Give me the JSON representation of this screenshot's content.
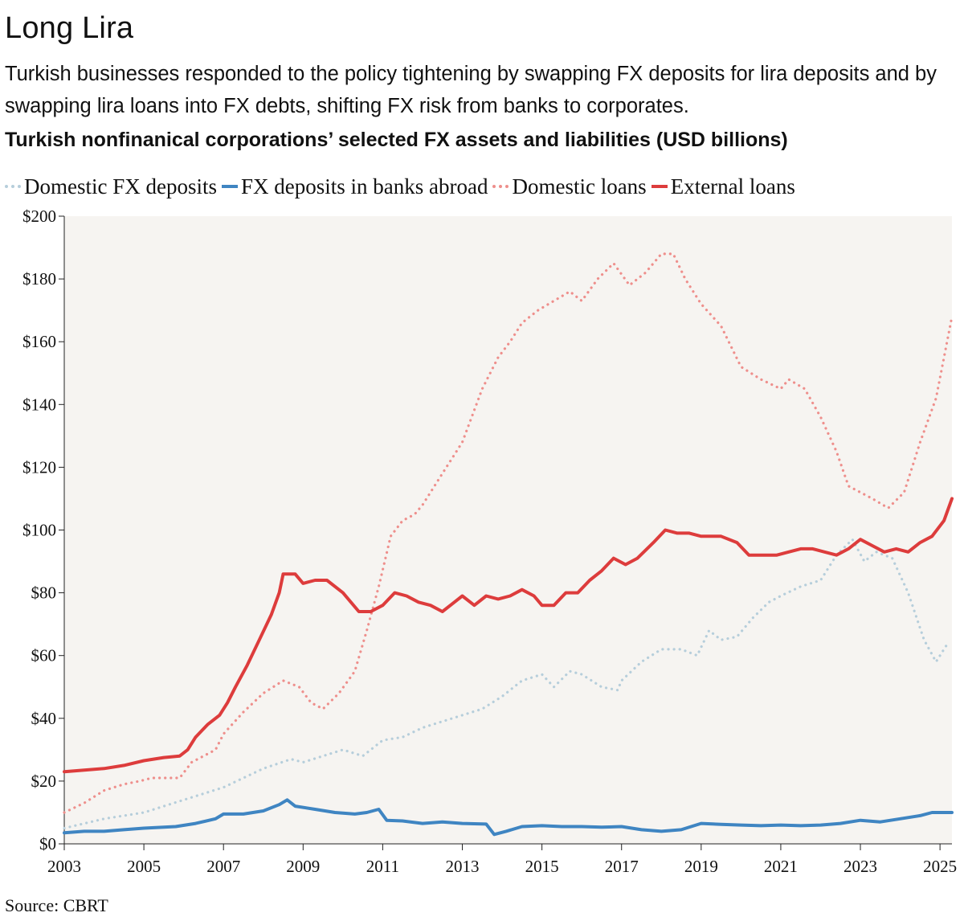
{
  "title": "Long Lira",
  "subtitle": "Turkish businesses responded to the policy tightening by swapping FX deposits for lira deposits and by swapping lira loans into FX debts, shifting FX risk from banks to corporates.",
  "source": "Source: CBRT",
  "colors": {
    "background": "#f6f4f1",
    "domestic_fx_deposits": "#b6cedb",
    "fx_deposits_abroad": "#3f85c2",
    "domestic_loans": "#ee8f8c",
    "external_loans": "#dd3c3c"
  },
  "chart_data": {
    "type": "line",
    "title": "Turkish nonfinanical corporations’ selected FX assets and liabilities (USD billions)",
    "xlabel": "",
    "ylabel": "",
    "xlim": [
      2003,
      2025.3
    ],
    "ylim": [
      0,
      200
    ],
    "x_ticks": [
      2003,
      2005,
      2007,
      2009,
      2011,
      2013,
      2015,
      2017,
      2019,
      2021,
      2023,
      2025
    ],
    "x_tick_labels": [
      "2003",
      "2005",
      "2007",
      "2009",
      "2011",
      "2013",
      "2015",
      "2017",
      "2019",
      "2021",
      "2023",
      "2025"
    ],
    "y_ticks": [
      0,
      20,
      40,
      60,
      80,
      100,
      120,
      140,
      160,
      180,
      200
    ],
    "y_tick_labels": [
      "$0",
      "$20",
      "$40",
      "$60",
      "$80",
      "$100",
      "$120",
      "$140",
      "$160",
      "$180",
      "$200"
    ],
    "grid": false,
    "legend_position": "top",
    "series": [
      {
        "name": "Domestic FX deposits",
        "style": "dotted",
        "points": [
          [
            2003,
            5
          ],
          [
            2004,
            8
          ],
          [
            2005,
            10
          ],
          [
            2006,
            14
          ],
          [
            2007,
            18
          ],
          [
            2008,
            24
          ],
          [
            2008.7,
            27
          ],
          [
            2009,
            26
          ],
          [
            2009.5,
            28
          ],
          [
            2010,
            30
          ],
          [
            2010.5,
            28
          ],
          [
            2011,
            33
          ],
          [
            2011.5,
            34
          ],
          [
            2012,
            37
          ],
          [
            2012.5,
            39
          ],
          [
            2013,
            41
          ],
          [
            2013.5,
            43
          ],
          [
            2014,
            47
          ],
          [
            2014.5,
            52
          ],
          [
            2015,
            54
          ],
          [
            2015.3,
            50
          ],
          [
            2015.7,
            55
          ],
          [
            2016,
            54
          ],
          [
            2016.5,
            50
          ],
          [
            2016.9,
            49
          ],
          [
            2017,
            52
          ],
          [
            2017.5,
            58
          ],
          [
            2018,
            62
          ],
          [
            2018.5,
            62
          ],
          [
            2018.9,
            60
          ],
          [
            2019.2,
            68
          ],
          [
            2019.5,
            65
          ],
          [
            2019.9,
            66
          ],
          [
            2020.3,
            72
          ],
          [
            2020.7,
            77
          ],
          [
            2021,
            79
          ],
          [
            2021.5,
            82
          ],
          [
            2022,
            84
          ],
          [
            2022.4,
            92
          ],
          [
            2022.8,
            97
          ],
          [
            2023.1,
            90
          ],
          [
            2023.4,
            93
          ],
          [
            2023.8,
            91
          ],
          [
            2024.2,
            80
          ],
          [
            2024.6,
            65
          ],
          [
            2024.9,
            58
          ],
          [
            2025.2,
            64
          ]
        ]
      },
      {
        "name": "FX deposits in banks abroad",
        "style": "solid",
        "points": [
          [
            2003,
            3.5
          ],
          [
            2003.5,
            4
          ],
          [
            2004,
            4
          ],
          [
            2004.5,
            4.5
          ],
          [
            2005,
            5
          ],
          [
            2005.8,
            5.5
          ],
          [
            2006.3,
            6.5
          ],
          [
            2006.8,
            8
          ],
          [
            2007,
            9.5
          ],
          [
            2007.5,
            9.5
          ],
          [
            2008,
            10.5
          ],
          [
            2008.4,
            12.5
          ],
          [
            2008.6,
            14
          ],
          [
            2008.8,
            12
          ],
          [
            2009.3,
            11
          ],
          [
            2009.8,
            10
          ],
          [
            2010.3,
            9.5
          ],
          [
            2010.6,
            10
          ],
          [
            2010.9,
            11
          ],
          [
            2011.1,
            7.5
          ],
          [
            2011.5,
            7.3
          ],
          [
            2012,
            6.5
          ],
          [
            2012.5,
            7
          ],
          [
            2013,
            6.5
          ],
          [
            2013.6,
            6.3
          ],
          [
            2013.8,
            3
          ],
          [
            2014.1,
            4
          ],
          [
            2014.5,
            5.5
          ],
          [
            2015,
            5.8
          ],
          [
            2015.5,
            5.5
          ],
          [
            2016,
            5.5
          ],
          [
            2016.5,
            5.3
          ],
          [
            2017,
            5.5
          ],
          [
            2017.5,
            4.5
          ],
          [
            2018,
            4
          ],
          [
            2018.5,
            4.5
          ],
          [
            2019,
            6.5
          ],
          [
            2019.5,
            6.2
          ],
          [
            2020,
            6
          ],
          [
            2020.5,
            5.8
          ],
          [
            2021,
            6
          ],
          [
            2021.5,
            5.8
          ],
          [
            2022,
            6
          ],
          [
            2022.5,
            6.5
          ],
          [
            2023,
            7.5
          ],
          [
            2023.5,
            7
          ],
          [
            2024,
            8
          ],
          [
            2024.5,
            9
          ],
          [
            2024.8,
            10
          ],
          [
            2025.3,
            10
          ]
        ]
      },
      {
        "name": "Domestic loans",
        "style": "dotted",
        "points": [
          [
            2003,
            10
          ],
          [
            2003.5,
            13
          ],
          [
            2004,
            17
          ],
          [
            2004.5,
            19
          ],
          [
            2004.9,
            20
          ],
          [
            2005.2,
            21
          ],
          [
            2005.9,
            21
          ],
          [
            2006.2,
            26
          ],
          [
            2006.8,
            30
          ],
          [
            2007,
            35
          ],
          [
            2007.5,
            42
          ],
          [
            2008,
            48
          ],
          [
            2008.5,
            52
          ],
          [
            2008.9,
            50
          ],
          [
            2009.2,
            45
          ],
          [
            2009.5,
            43
          ],
          [
            2009.9,
            48
          ],
          [
            2010.3,
            55
          ],
          [
            2010.6,
            68
          ],
          [
            2010.9,
            82
          ],
          [
            2011.2,
            98
          ],
          [
            2011.5,
            103
          ],
          [
            2011.8,
            105
          ],
          [
            2012,
            108
          ],
          [
            2012.5,
            118
          ],
          [
            2013,
            128
          ],
          [
            2013.5,
            145
          ],
          [
            2013.9,
            155
          ],
          [
            2014.2,
            160
          ],
          [
            2014.5,
            166
          ],
          [
            2014.9,
            170
          ],
          [
            2015.3,
            173
          ],
          [
            2015.7,
            176
          ],
          [
            2016,
            173
          ],
          [
            2016.4,
            180
          ],
          [
            2016.8,
            185
          ],
          [
            2017.2,
            178
          ],
          [
            2017.6,
            182
          ],
          [
            2018,
            188
          ],
          [
            2018.3,
            188
          ],
          [
            2018.6,
            180
          ],
          [
            2019,
            172
          ],
          [
            2019.5,
            165
          ],
          [
            2020,
            152
          ],
          [
            2020.5,
            148
          ],
          [
            2021,
            145
          ],
          [
            2021.2,
            148
          ],
          [
            2021.6,
            145
          ],
          [
            2022,
            136
          ],
          [
            2022.4,
            125
          ],
          [
            2022.7,
            114
          ],
          [
            2023,
            112
          ],
          [
            2023.3,
            110
          ],
          [
            2023.7,
            107
          ],
          [
            2024.1,
            112
          ],
          [
            2024.5,
            128
          ],
          [
            2024.9,
            142
          ],
          [
            2025.3,
            168
          ]
        ]
      },
      {
        "name": "External loans",
        "style": "solid",
        "points": [
          [
            2003,
            23
          ],
          [
            2003.5,
            23.5
          ],
          [
            2004,
            24
          ],
          [
            2004.5,
            25
          ],
          [
            2005,
            26.5
          ],
          [
            2005.5,
            27.5
          ],
          [
            2005.9,
            28
          ],
          [
            2006.1,
            30
          ],
          [
            2006.3,
            34
          ],
          [
            2006.6,
            38
          ],
          [
            2006.9,
            41
          ],
          [
            2007.1,
            45
          ],
          [
            2007.3,
            50
          ],
          [
            2007.6,
            57
          ],
          [
            2007.9,
            65
          ],
          [
            2008.2,
            73
          ],
          [
            2008.4,
            80
          ],
          [
            2008.5,
            86
          ],
          [
            2008.8,
            86
          ],
          [
            2009,
            83
          ],
          [
            2009.3,
            84
          ],
          [
            2009.6,
            84
          ],
          [
            2010,
            80
          ],
          [
            2010.4,
            74
          ],
          [
            2010.7,
            74
          ],
          [
            2011,
            76
          ],
          [
            2011.3,
            80
          ],
          [
            2011.6,
            79
          ],
          [
            2011.9,
            77
          ],
          [
            2012.2,
            76
          ],
          [
            2012.5,
            74
          ],
          [
            2012.8,
            77
          ],
          [
            2013,
            79
          ],
          [
            2013.3,
            76
          ],
          [
            2013.6,
            79
          ],
          [
            2013.9,
            78
          ],
          [
            2014.2,
            79
          ],
          [
            2014.5,
            81
          ],
          [
            2014.8,
            79
          ],
          [
            2015,
            76
          ],
          [
            2015.3,
            76
          ],
          [
            2015.6,
            80
          ],
          [
            2015.9,
            80
          ],
          [
            2016.2,
            84
          ],
          [
            2016.5,
            87
          ],
          [
            2016.8,
            91
          ],
          [
            2017.1,
            89
          ],
          [
            2017.4,
            91
          ],
          [
            2017.8,
            96
          ],
          [
            2018.1,
            100
          ],
          [
            2018.4,
            99
          ],
          [
            2018.7,
            99
          ],
          [
            2019,
            98
          ],
          [
            2019.5,
            98
          ],
          [
            2019.9,
            96
          ],
          [
            2020.2,
            92
          ],
          [
            2020.5,
            92
          ],
          [
            2020.9,
            92
          ],
          [
            2021.2,
            93
          ],
          [
            2021.5,
            94
          ],
          [
            2021.8,
            94
          ],
          [
            2022.1,
            93
          ],
          [
            2022.4,
            92
          ],
          [
            2022.7,
            94
          ],
          [
            2023,
            97
          ],
          [
            2023.3,
            95
          ],
          [
            2023.6,
            93
          ],
          [
            2023.9,
            94
          ],
          [
            2024.2,
            93
          ],
          [
            2024.5,
            96
          ],
          [
            2024.8,
            98
          ],
          [
            2025.1,
            103
          ],
          [
            2025.3,
            110
          ]
        ]
      }
    ]
  }
}
